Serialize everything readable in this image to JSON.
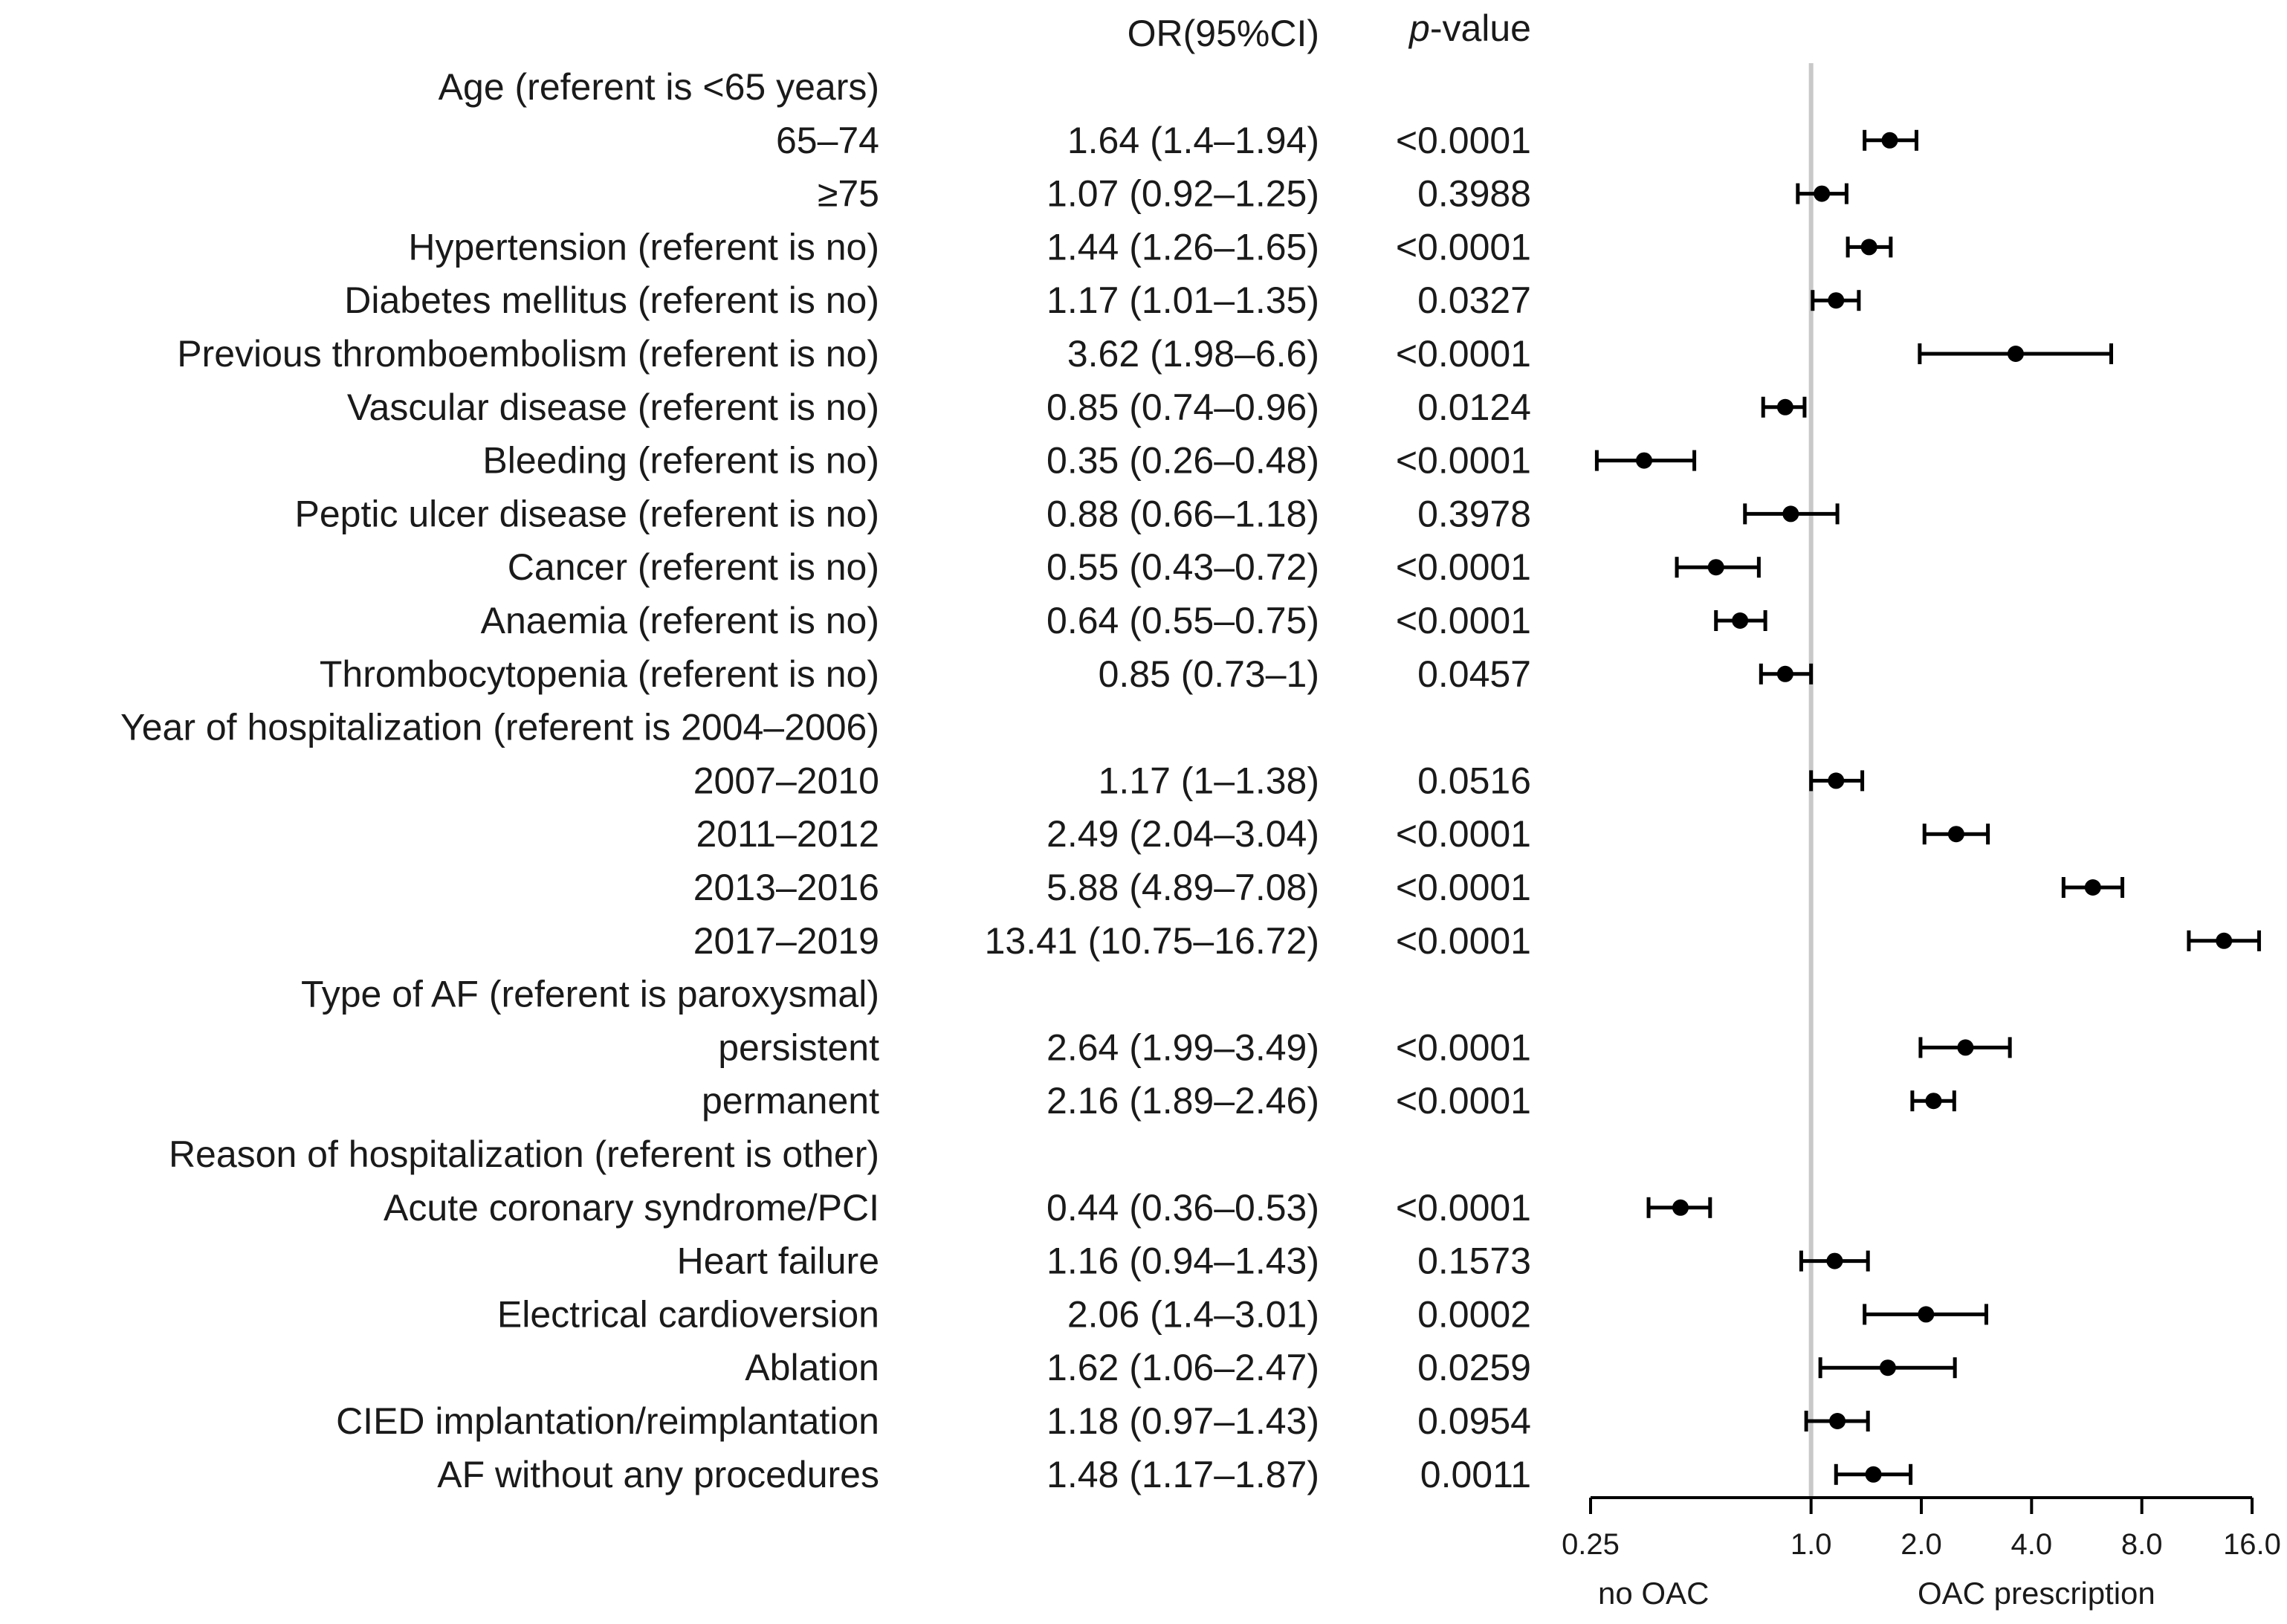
{
  "chart_data": {
    "type": "forest",
    "column_headers": {
      "or": "OR(95%CI)",
      "p_prefix": "p",
      "p_suffix": "-value"
    },
    "x_scale": "log2",
    "xlim": [
      0.25,
      16.0
    ],
    "reference_line": 1.0,
    "x_ticks": [
      "0.25",
      "1.0",
      "2.0",
      "4.0",
      "8.0",
      "16.0"
    ],
    "x_tick_values": [
      0.25,
      1.0,
      2.0,
      4.0,
      8.0,
      16.0
    ],
    "direction_labels": {
      "left": "no OAC",
      "right": "OAC prescription"
    },
    "rows": [
      {
        "label": "Age (referent is <65 years)",
        "header": true
      },
      {
        "label": "65–74",
        "ci_text": "1.64 (1.4–1.94)",
        "p": "<0.0001",
        "or": 1.64,
        "lo": 1.4,
        "hi": 1.94
      },
      {
        "label": "≥75",
        "ci_text": "1.07 (0.92–1.25)",
        "p": "0.3988",
        "or": 1.07,
        "lo": 0.92,
        "hi": 1.25
      },
      {
        "label": "Hypertension (referent is no)",
        "ci_text": "1.44 (1.26–1.65)",
        "p": "<0.0001",
        "or": 1.44,
        "lo": 1.26,
        "hi": 1.65
      },
      {
        "label": "Diabetes mellitus (referent is no)",
        "ci_text": "1.17 (1.01–1.35)",
        "p": "0.0327",
        "or": 1.17,
        "lo": 1.01,
        "hi": 1.35
      },
      {
        "label": "Previous thromboembolism (referent is no)",
        "ci_text": "3.62 (1.98–6.6)",
        "p": "<0.0001",
        "or": 3.62,
        "lo": 1.98,
        "hi": 6.6
      },
      {
        "label": "Vascular disease (referent is no)",
        "ci_text": "0.85 (0.74–0.96)",
        "p": "0.0124",
        "or": 0.85,
        "lo": 0.74,
        "hi": 0.96
      },
      {
        "label": "Bleeding (referent is no)",
        "ci_text": "0.35 (0.26–0.48)",
        "p": "<0.0001",
        "or": 0.35,
        "lo": 0.26,
        "hi": 0.48
      },
      {
        "label": "Peptic ulcer disease (referent is no)",
        "ci_text": "0.88 (0.66–1.18)",
        "p": "0.3978",
        "or": 0.88,
        "lo": 0.66,
        "hi": 1.18
      },
      {
        "label": "Cancer (referent is no)",
        "ci_text": "0.55 (0.43–0.72)",
        "p": "<0.0001",
        "or": 0.55,
        "lo": 0.43,
        "hi": 0.72
      },
      {
        "label": "Anaemia (referent is no)",
        "ci_text": "0.64 (0.55–0.75)",
        "p": "<0.0001",
        "or": 0.64,
        "lo": 0.55,
        "hi": 0.75
      },
      {
        "label": "Thrombocytopenia (referent is no)",
        "ci_text": "0.85 (0.73–1)",
        "p": "0.0457",
        "or": 0.85,
        "lo": 0.73,
        "hi": 1.0
      },
      {
        "label": "Year of hospitalization (referent is 2004–2006)",
        "header": true
      },
      {
        "label": "2007–2010",
        "ci_text": "1.17 (1–1.38)",
        "p": "0.0516",
        "or": 1.17,
        "lo": 1.0,
        "hi": 1.38
      },
      {
        "label": "2011–2012",
        "ci_text": "2.49 (2.04–3.04)",
        "p": "<0.0001",
        "or": 2.49,
        "lo": 2.04,
        "hi": 3.04
      },
      {
        "label": "2013–2016",
        "ci_text": "5.88 (4.89–7.08)",
        "p": "<0.0001",
        "or": 5.88,
        "lo": 4.89,
        "hi": 7.08
      },
      {
        "label": "2017–2019",
        "ci_text": "13.41 (10.75–16.72)",
        "p": "<0.0001",
        "or": 13.41,
        "lo": 10.75,
        "hi": 16.72
      },
      {
        "label": "Type of AF (referent is paroxysmal)",
        "header": true
      },
      {
        "label": "persistent",
        "ci_text": "2.64 (1.99–3.49)",
        "p": "<0.0001",
        "or": 2.64,
        "lo": 1.99,
        "hi": 3.49
      },
      {
        "label": "permanent",
        "ci_text": "2.16 (1.89–2.46)",
        "p": "<0.0001",
        "or": 2.16,
        "lo": 1.89,
        "hi": 2.46
      },
      {
        "label": "Reason of hospitalization (referent is other)",
        "header": true
      },
      {
        "label": "Acute coronary syndrome/PCI",
        "ci_text": "0.44 (0.36–0.53)",
        "p": "<0.0001",
        "or": 0.44,
        "lo": 0.36,
        "hi": 0.53
      },
      {
        "label": "Heart failure",
        "ci_text": "1.16 (0.94–1.43)",
        "p": "0.1573",
        "or": 1.16,
        "lo": 0.94,
        "hi": 1.43
      },
      {
        "label": "Electrical cardioversion",
        "ci_text": "2.06 (1.4–3.01)",
        "p": "0.0002",
        "or": 2.06,
        "lo": 1.4,
        "hi": 3.01
      },
      {
        "label": "Ablation",
        "ci_text": "1.62 (1.06–2.47)",
        "p": "0.0259",
        "or": 1.62,
        "lo": 1.06,
        "hi": 2.47
      },
      {
        "label": "CIED implantation/reimplantation",
        "ci_text": "1.18 (0.97–1.43)",
        "p": "0.0954",
        "or": 1.18,
        "lo": 0.97,
        "hi": 1.43
      },
      {
        "label": "AF without any procedures",
        "ci_text": "1.48 (1.17–1.87)",
        "p": "0.0011",
        "or": 1.48,
        "lo": 1.17,
        "hi": 1.87
      }
    ],
    "colors": {
      "marker": "#000000",
      "reference_line": "#c8c8c8",
      "text": "#1a1a1a"
    }
  }
}
